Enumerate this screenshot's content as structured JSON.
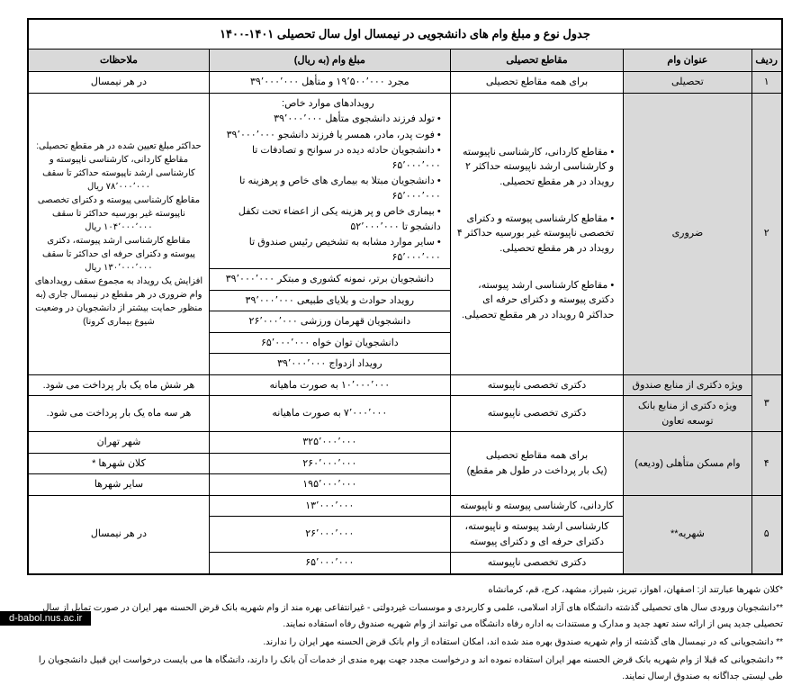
{
  "title": "جدول نوع و مبلغ وام های دانشجویی در نیمسال اول سال تحصیلی ۱۴۰۱-۱۴۰۰",
  "headers": {
    "num": "ردیف",
    "loan": "عنوان وام",
    "level": "مقاطع تحصیلی",
    "amount": "مبلغ وام (به ریال)",
    "notes": "ملاحظات"
  },
  "row1": {
    "num": "۱",
    "loan": "تحصیلی",
    "level": "برای همه مقاطع تحصیلی",
    "amount": "مجرد ۱۹٬۵۰۰٬۰۰۰ و متأهل ۳۹٬۰۰۰٬۰۰۰",
    "notes": "در هر نیمسال"
  },
  "row2": {
    "num": "۲",
    "loan": "ضروری",
    "level": {
      "l1": "مقاطع کاردانی، کارشناسی ناپیوسته و کارشناسی ارشد ناپیوسته حداکثر ۲ رویداد در هر مقطع تحصیلی.",
      "l2": "مقاطع کارشناسی پیوسته و دکترای تخصصی ناپیوسته غیر بورسیه حداکثر ۴ رویداد در هر مقطع تحصیلی.",
      "l3": "مقاطع کارشناسی ارشد پیوسته، دکتری پیوسته و دکترای حرفه ای حداکثر ۵ رویداد در هر مقطع تحصیلی."
    },
    "amount": {
      "head": "رویدادهای موارد خاص:",
      "i1": "تولد فرزند دانشجوی متأهل ۳۹٬۰۰۰٬۰۰۰",
      "i2": "فوت پدر، مادر، همسر یا فرزند دانشجو ۳۹٬۰۰۰٬۰۰۰",
      "i3": "دانشجویان حادثه دیده در سوانح و تصادفات تا ۶۵٬۰۰۰٬۰۰۰",
      "i4": "دانشجویان مبتلا به بیماری های خاص و پرهزینه تا ۶۵٬۰۰۰٬۰۰۰",
      "i5": "بیماری خاص و پر هزینه یکی از اعضاء تحت تکفل دانشجو تا ۵۲٬۰۰۰٬۰۰۰",
      "i6": "سایر موارد مشابه به تشخیص رئیس صندوق تا ۶۵٬۰۰۰٬۰۰۰"
    },
    "amt_r2": "دانشجویان برتر، نمونه کشوری و مبتکر ۳۹٬۰۰۰٬۰۰۰",
    "amt_r3": "رویداد حوادث و بلایای طبیعی ۳۹٬۰۰۰٬۰۰۰",
    "amt_r4": "دانشجویان قهرمان ورزشی ۲۶٬۰۰۰٬۰۰۰",
    "amt_r5": "دانشجویان توان خواه ۶۵٬۰۰۰٬۰۰۰",
    "amt_r6": "رویداد ازدواج ۳۹٬۰۰۰٬۰۰۰",
    "notes": "حداکثر مبلغ تعیین شده در هر مقطع تحصیلی:\nمقاطع کاردانی، کارشناسی ناپیوسته و کارشناسی ارشد ناپیوسته حداکثر تا سقف ۷۸٬۰۰۰٬۰۰۰ ریال\nمقاطع کارشناسی پیوسته و دکترای تخصصی ناپیوسته غیر بورسیه حداکثر تا سقف ۱۰۴٬۰۰۰٬۰۰۰ ریال\nمقاطع کارشناسی ارشد پیوسته، دکتری پیوسته و دکترای حرفه ای حداکثر تا سقف ۱۳۰٬۰۰۰٬۰۰۰ ریال\nافزایش یک رویداد به مجموع سقف رویدادهای وام ضروری در هر مقطع در نیمسال جاری (به منظور حمایت بیشتر از دانشجویان در وضعیت شیوع بیماری کرونا)"
  },
  "row3": {
    "num": "۳",
    "loan_a": "ویژه دکتری از منابع صندوق",
    "loan_b": "ویژه دکتری از منابع بانک توسعه تعاون",
    "level": "دکتری تخصصی ناپیوسته",
    "amt_a": "۱۰٬۰۰۰٬۰۰۰ به صورت ماهیانه",
    "amt_b": "۷٬۰۰۰٬۰۰۰ به صورت ماهیانه",
    "note_a": "هر شش ماه یک بار پرداخت می شود.",
    "note_b": "هر سه ماه یک بار پرداخت می شود."
  },
  "row4": {
    "num": "۴",
    "loan": "وام مسکن متأهلی (ودیعه)",
    "level": "برای همه مقاطع تحصیلی\n(یک بار پرداخت در طول هر مقطع)",
    "amt_a": "۳۲۵٬۰۰۰٬۰۰۰",
    "amt_b": "۲۶۰٬۰۰۰٬۰۰۰",
    "amt_c": "۱۹۵٬۰۰۰٬۰۰۰",
    "note_a": "شهر تهران",
    "note_b": "کلان شهرها *",
    "note_c": "سایر شهرها"
  },
  "row5": {
    "num": "۵",
    "loan": "شهریه**",
    "lvl_a": "کاردانی، کارشناسی پیوسته و ناپیوسته",
    "lvl_b": "کارشناسی ارشد پیوسته و ناپیوسته، دکترای حرفه ای و دکترای پیوسته",
    "lvl_c": "دکتری تخصصی ناپیوسته",
    "amt_a": "۱۳٬۰۰۰٬۰۰۰",
    "amt_b": "۲۶٬۰۰۰٬۰۰۰",
    "amt_c": "۶۵٬۰۰۰٬۰۰۰",
    "notes": "در هر نیمسال"
  },
  "footnotes": {
    "f1": "*کلان شهرها عبارتند از: اصفهان، اهواز، تبریز، شیراز، مشهد، کرج، قم، کرمانشاه",
    "f2": "**دانشجویان ورودی سال های تحصیلی گذشته دانشگاه های آزاد اسلامی، علمی و کاربردی و موسسات غیردولتی - غیرانتفاعی بهره مند از وام شهریه بانک قرض الحسنه مهر ایران در صورت تمایل از سال تحصیلی جدید پس از ارائه سند تعهد جدید و  مدارک و مستندات به اداره رفاه دانشگاه می توانند از وام شهریه صندوق رفاه استفاده نمایند.",
    "f3": "** دانشجویانی که در نیمسال های گذشته از وام شهریه صندوق بهره مند شده اند، امکان استفاده از وام بانک قرض الحسنه مهر ایران را ندارند.",
    "f4": "** دانشجویانی که قبلا از وام شهریه بانک قرض الحسنه مهر ایران استفاده نموده اند و درخواست مجدد جهت بهره مندی از خدمات آن بانک را دارند، دانشگاه ها می بایست درخواست این قبیل دانشجویان را طی لیستی جداگانه به صندوق ارسال نمایند."
  },
  "watermark": "d-babol.nus.ac.ir"
}
